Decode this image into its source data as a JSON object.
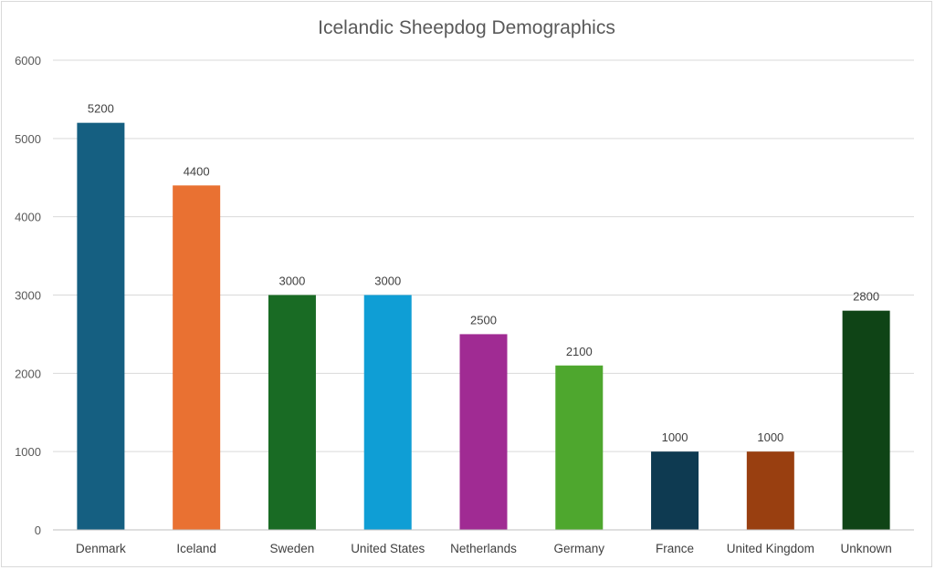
{
  "chart_data": {
    "type": "bar",
    "title": "Icelandic Sheepdog Demographics",
    "xlabel": "",
    "ylabel": "",
    "categories": [
      "Denmark",
      "Iceland",
      "Sweden",
      "United States",
      "Netherlands",
      "Germany",
      "France",
      "United Kingdom",
      "Unknown"
    ],
    "values": [
      5200,
      4400,
      3000,
      3000,
      2500,
      2100,
      1000,
      1000,
      2800
    ],
    "colors": [
      "#155f81",
      "#e97132",
      "#196b24",
      "#0f9ed5",
      "#a02b93",
      "#4ea72e",
      "#0e3a51",
      "#993f10",
      "#0f4416"
    ],
    "ylim": [
      0,
      6000
    ],
    "yticks": [
      0,
      1000,
      2000,
      3000,
      4000,
      5000,
      6000
    ],
    "grid": true,
    "legend": "none",
    "data_labels": true
  }
}
